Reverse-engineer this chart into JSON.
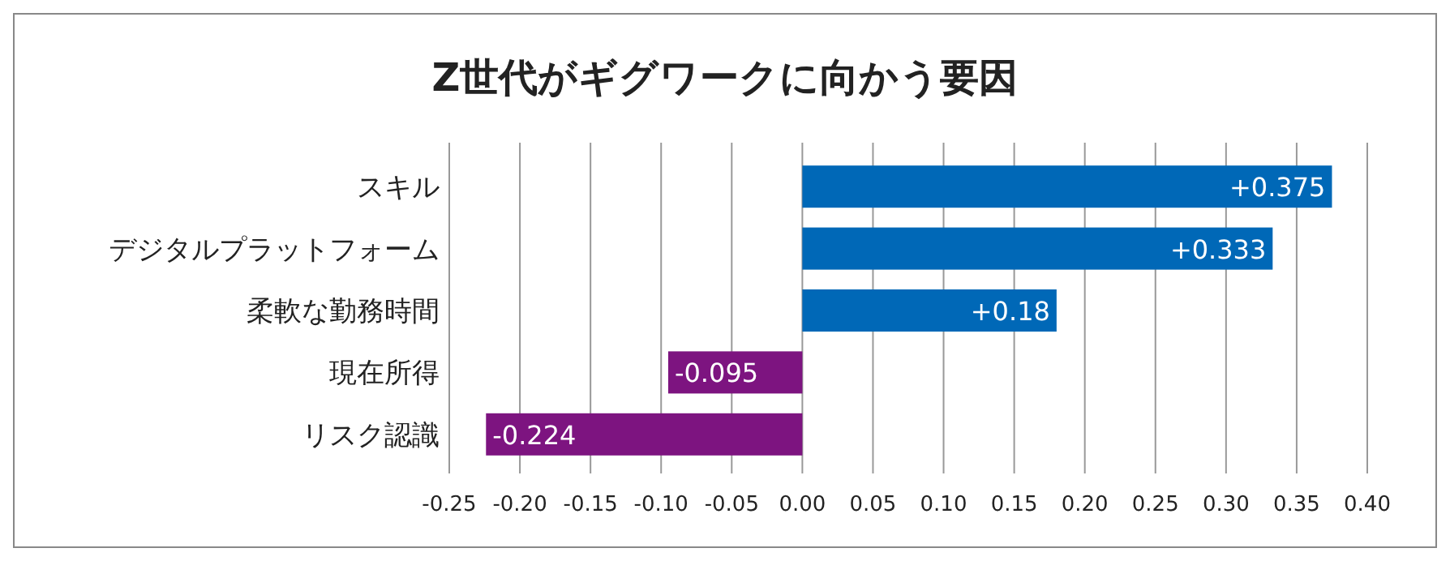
{
  "chart_data": {
    "type": "bar",
    "orientation": "horizontal",
    "title": "Z世代がギグワークに向かう要因",
    "categories": [
      "スキル",
      "デジタルプラットフォーム",
      "柔軟な勤務時間",
      "現在所得",
      "リスク認識"
    ],
    "values": [
      0.375,
      0.333,
      0.18,
      -0.095,
      -0.224
    ],
    "colors": [
      "#0068b7",
      "#0068b7",
      "#0068b7",
      "#7d1480",
      "#7d1480"
    ],
    "value_labels": [
      "+0.375",
      "+0.333",
      "+0.18",
      "-0.095",
      "-0.224"
    ],
    "xlim": [
      -0.25,
      0.4
    ],
    "xticks": [
      {
        "value": -0.25,
        "label": "-0.25"
      },
      {
        "value": -0.2,
        "label": "-0.20"
      },
      {
        "value": -0.15,
        "label": "-0.15"
      },
      {
        "value": -0.1,
        "label": "-0.10"
      },
      {
        "value": -0.05,
        "label": "-0.05"
      },
      {
        "value": 0,
        "label": "0.00"
      },
      {
        "value": 0.05,
        "label": "0.05"
      },
      {
        "value": 0.1,
        "label": "0.10"
      },
      {
        "value": 0.15,
        "label": "0.15"
      },
      {
        "value": 0.2,
        "label": "0.20"
      },
      {
        "value": 0.25,
        "label": "0.25"
      },
      {
        "value": 0.3,
        "label": "0.30"
      },
      {
        "value": 0.35,
        "label": "0.35"
      },
      {
        "value": 0.4,
        "label": "0.40"
      }
    ],
    "grid": "x"
  }
}
